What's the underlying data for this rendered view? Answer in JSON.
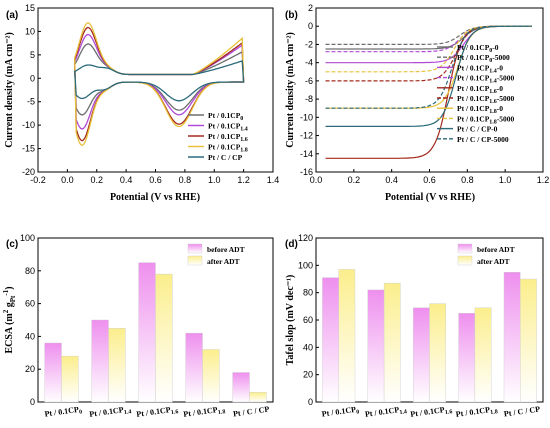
{
  "colors": {
    "pt01cp0": "#6d6d6d",
    "pt01cp14": "#b04ad6",
    "pt01cp16": "#a32a1d",
    "pt01cp18": "#e8c23a",
    "ptccp": "#2a6a7a",
    "before_top": "#ee8fee",
    "after_top": "#fbee8c"
  },
  "chart_data": [
    {
      "id": "a",
      "panel_label": "(a)",
      "type": "line",
      "xlabel": "Potential (V vs RHE)",
      "ylabel": "Current density (mA cm⁻²)",
      "xlim": [
        -0.2,
        1.4
      ],
      "ylim": [
        -20,
        15
      ],
      "xticks": [
        "-0.2",
        "0.0",
        "0.2",
        "0.4",
        "0.6",
        "0.8",
        "1.0",
        "1.2",
        "1.4"
      ],
      "yticks": [
        "15",
        "10",
        "5",
        "0",
        "-5",
        "-10",
        "-15",
        "-20"
      ],
      "legend_position": "right",
      "series": [
        {
          "key": "s0",
          "base": "Pt / 0.1CP",
          "sub": "0",
          "color_key": "pt01cp0",
          "anodic_peak": 6.5,
          "cathodic_peak": -7.0,
          "oxide_anodic": 5.0,
          "oxide_cathodic": -6.0
        },
        {
          "key": "s14",
          "base": "Pt / 0.1CP",
          "sub": "1.4",
          "color_key": "pt01cp14",
          "anodic_peak": 8.5,
          "cathodic_peak": -10.0,
          "oxide_anodic": 6.5,
          "oxide_cathodic": -7.0
        },
        {
          "key": "s16",
          "base": "Pt / 0.1CP",
          "sub": "1.6",
          "color_key": "pt01cp16",
          "anodic_peak": 10.0,
          "cathodic_peak": -12.5,
          "oxide_anodic": 7.0,
          "oxide_cathodic": -9.0
        },
        {
          "key": "s18",
          "base": "Pt / 0.1CP",
          "sub": "1.8",
          "color_key": "pt01cp18",
          "anodic_peak": 11.0,
          "cathodic_peak": -13.5,
          "oxide_anodic": 8.0,
          "oxide_cathodic": -9.5
        },
        {
          "key": "sc",
          "base": "Pt / C / CP",
          "sub": "",
          "color_key": "ptccp",
          "anodic_peak": 2.0,
          "cathodic_peak": -3.5,
          "oxide_anodic": 3.0,
          "oxide_cathodic": -4.0
        }
      ]
    },
    {
      "id": "b",
      "panel_label": "(b)",
      "type": "line",
      "xlabel": "Potential (V vs RHE)",
      "ylabel": "Current density (mA cm⁻²)",
      "xlim": [
        0.0,
        1.2
      ],
      "ylim": [
        -16,
        2
      ],
      "xticks": [
        "0.0",
        "0.2",
        "0.4",
        "0.6",
        "0.8",
        "1.0",
        "1.2"
      ],
      "yticks": [
        "2",
        "0",
        "-2",
        "-4",
        "-6",
        "-8",
        "-10",
        "-12",
        "-14",
        "-16"
      ],
      "legend_position": "right",
      "series": [
        {
          "key": "b0a",
          "base": "Pt / 0.1CP",
          "sub": "0",
          "sup": "-0",
          "color_key": "pt01cp0",
          "dash": false,
          "limit": -2.5,
          "half": 0.78
        },
        {
          "key": "b0b",
          "base": "Pt / 0.1CP",
          "sub": "0",
          "sup": "-5000",
          "color_key": "pt01cp0",
          "dash": true,
          "limit": -2.0,
          "half": 0.76
        },
        {
          "key": "b14a",
          "base": "Pt / 0.1CP",
          "sub": "1.4",
          "sup": "-0",
          "color_key": "pt01cp14",
          "dash": false,
          "limit": -4.0,
          "half": 0.78
        },
        {
          "key": "b14b",
          "base": "Pt / 0.1CP",
          "sub": "1.4",
          "sup": "-5000",
          "color_key": "pt01cp14",
          "dash": true,
          "limit": -2.8,
          "half": 0.76
        },
        {
          "key": "b16a",
          "base": "Pt / 0.1CP",
          "sub": "1.6",
          "sup": "-0",
          "color_key": "pt01cp16",
          "dash": false,
          "limit": -14.5,
          "half": 0.7
        },
        {
          "key": "b16b",
          "base": "Pt / 0.1CP",
          "sub": "1.6",
          "sup": "-5000",
          "color_key": "pt01cp16",
          "dash": true,
          "limit": -6.0,
          "half": 0.74
        },
        {
          "key": "b18a",
          "base": "Pt / 0.1CP",
          "sub": "1.8",
          "sup": "-0",
          "color_key": "pt01cp18",
          "dash": false,
          "limit": -9.0,
          "half": 0.75
        },
        {
          "key": "b18b",
          "base": "Pt / 0.1CP",
          "sub": "1.8",
          "sup": "-5000",
          "color_key": "pt01cp18",
          "dash": true,
          "limit": -5.0,
          "half": 0.73
        },
        {
          "key": "bca",
          "base": "Pt / C / CP-0",
          "sub": "",
          "sup": "",
          "color_key": "ptccp",
          "dash": false,
          "limit": -11.0,
          "half": 0.74
        },
        {
          "key": "bcb",
          "base": "Pt / C / CP-5000",
          "sub": "",
          "sup": "",
          "color_key": "ptccp",
          "dash": true,
          "limit": -9.0,
          "half": 0.72
        }
      ]
    },
    {
      "id": "c",
      "panel_label": "(c)",
      "type": "bar",
      "ylabel_pre": "ECSA (m",
      "ylabel_sup1": "2",
      "ylabel_mid": " g",
      "ylabel_sub": "Pt",
      "ylabel_sup2": "-1",
      "ylabel_post": ")",
      "ylim": [
        0,
        100
      ],
      "yticks": [
        "0",
        "20",
        "40",
        "60",
        "80",
        "100"
      ],
      "categories": [
        {
          "base": "Pt / 0.1CP",
          "sub": "0"
        },
        {
          "base": "Pt / 0.1CP",
          "sub": "1.4"
        },
        {
          "base": "Pt / 0.1CP",
          "sub": "1.6"
        },
        {
          "base": "Pt / 0.1CP",
          "sub": "1.8"
        },
        {
          "base": "Pt / C / CP",
          "sub": ""
        }
      ],
      "series": [
        {
          "name": "before ADT",
          "color_key": "before_top",
          "values": [
            36,
            50,
            85,
            42,
            18
          ]
        },
        {
          "name": "after ADT",
          "color_key": "after_top",
          "values": [
            28,
            45,
            78,
            32,
            6
          ]
        }
      ],
      "legend_position": "top-right"
    },
    {
      "id": "d",
      "panel_label": "(d)",
      "type": "bar",
      "ylabel": "Tafel slop (mV dec⁻¹)",
      "ylim": [
        0,
        120
      ],
      "yticks": [
        "0",
        "20",
        "40",
        "60",
        "80",
        "100",
        "120"
      ],
      "categories": [
        {
          "base": "Pt / 0.1CP",
          "sub": "0"
        },
        {
          "base": "Pt / 0.1CP",
          "sub": "1.4"
        },
        {
          "base": "Pt / 0.1CP",
          "sub": "1.6"
        },
        {
          "base": "Pt / 0.1CP",
          "sub": "1.8"
        },
        {
          "base": "Pt / C / CP",
          "sub": ""
        }
      ],
      "series": [
        {
          "name": "before ADT",
          "color_key": "before_top",
          "values": [
            91,
            82,
            69,
            65,
            95
          ]
        },
        {
          "name": "after ADT",
          "color_key": "after_top",
          "values": [
            97,
            87,
            72,
            69,
            90
          ]
        }
      ],
      "legend_position": "top-right"
    }
  ]
}
